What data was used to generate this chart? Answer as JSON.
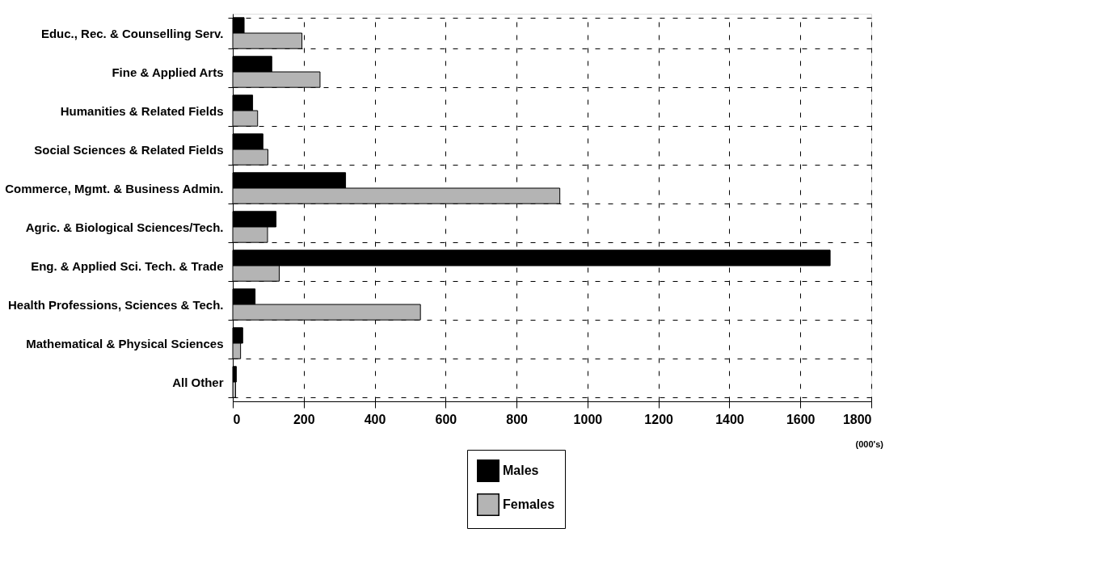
{
  "chart_data": {
    "type": "bar",
    "orientation": "horizontal",
    "categories": [
      "Educ., Rec. & Counselling Serv.",
      "Fine & Applied Arts",
      "Humanities & Related Fields",
      "Social Sciences & Related Fields",
      "Commerce, Mgmt. & Business Admin.",
      "Agric. & Biological Sciences/Tech.",
      "Eng. & Applied Sci. Tech. & Trade",
      "Health Professions, Sciences & Tech.",
      "Mathematical & Physical Sciences",
      "All Other"
    ],
    "series": [
      {
        "name": "Males",
        "color": "#000000",
        "values": [
          32,
          110,
          56,
          85,
          318,
          122,
          1684,
          63,
          28,
          10
        ]
      },
      {
        "name": "Females",
        "color": "#b4b4b4",
        "values": [
          195,
          246,
          70,
          99,
          922,
          98,
          131,
          529,
          22,
          8
        ]
      }
    ],
    "xlim": [
      0,
      1800
    ],
    "xticks": [
      0,
      200,
      400,
      600,
      800,
      1000,
      1200,
      1400,
      1600,
      1800
    ],
    "grid": true,
    "legend": "bottom",
    "annotations": [
      "(000's)"
    ]
  }
}
